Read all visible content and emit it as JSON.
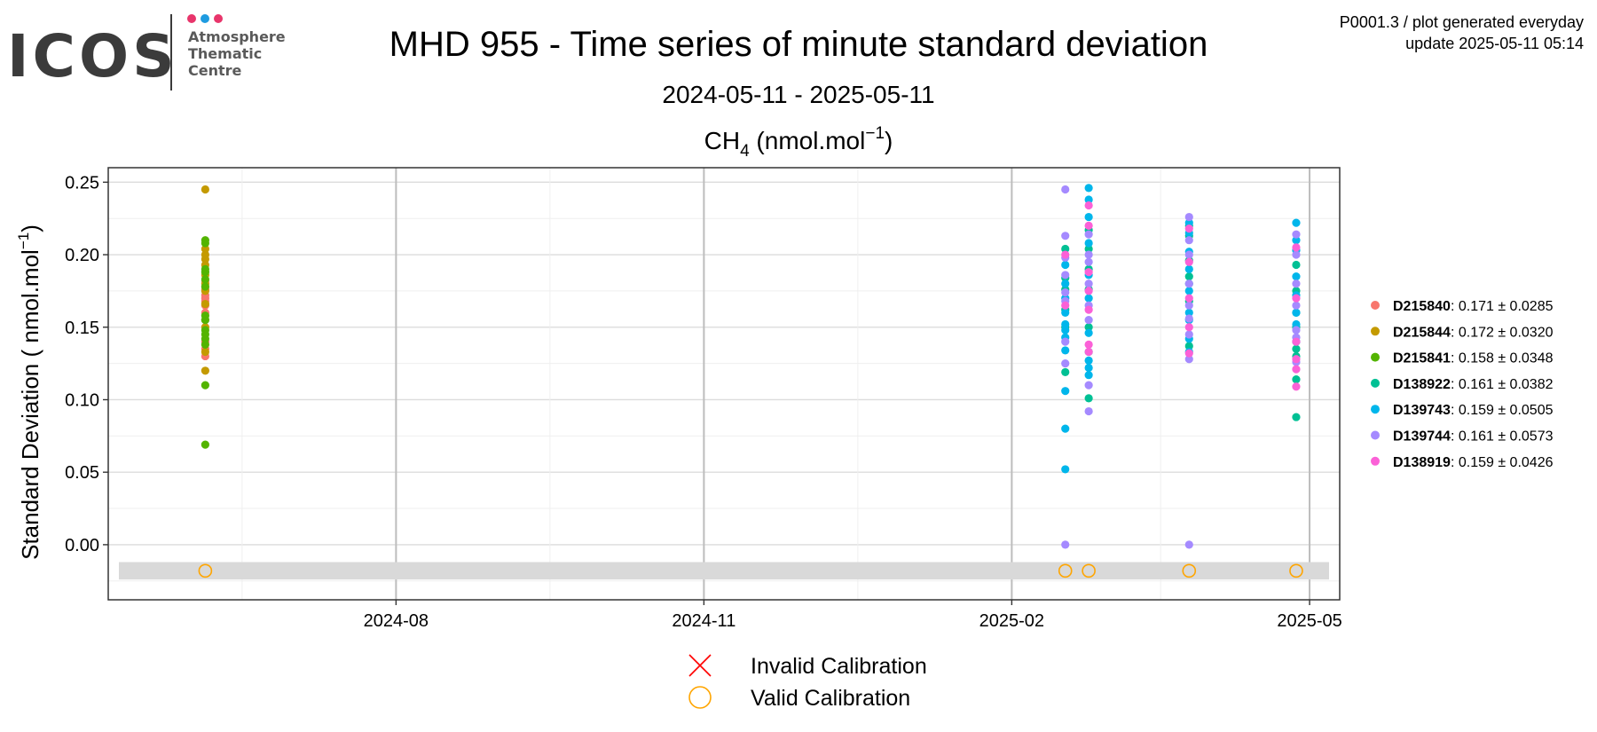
{
  "logo": {
    "word": "ICOS",
    "line1": "Atmosphere",
    "line2": "Thematic",
    "line3": "Centre",
    "dot_colors": [
      "#e8356b",
      "#1e9be0",
      "#e8356b"
    ]
  },
  "header": {
    "title": "MHD 955 - Time series of minute standard deviation",
    "date_range": "2024-05-11 - 2025-05-11",
    "gas_base": "CH",
    "gas_sub": "4",
    "unit_open": " (nmol.mol",
    "unit_sup": "−1",
    "unit_close": ")",
    "meta_line1": "P0001.3 / plot generated everyday",
    "meta_line2": "update  2025-05-11 05:14"
  },
  "chart_data": {
    "type": "scatter",
    "ylabel_main": "Standard Deviation ( nmol.mol",
    "ylabel_sup": "−1",
    "ylabel_close": ")",
    "xlim": [
      "2024-05-07",
      "2025-05-10"
    ],
    "ylim": [
      -0.038,
      0.26
    ],
    "x_ticks": [
      {
        "date": "2024-08-01",
        "label": "2024-08"
      },
      {
        "date": "2024-11-01",
        "label": "2024-11"
      },
      {
        "date": "2025-02-01",
        "label": "2025-02"
      },
      {
        "date": "2025-05-01",
        "label": "2025-05"
      }
    ],
    "y_ticks": [
      0.0,
      0.05,
      0.1,
      0.15,
      0.2,
      0.25
    ],
    "y_tick_labels": [
      "0.00",
      "0.05",
      "0.10",
      "0.15",
      "0.20",
      "0.25"
    ],
    "grid": true,
    "calibration_band": {
      "y_low": -0.024,
      "y_high": -0.012,
      "color": "#d9d9d9"
    },
    "legend_position": "right",
    "series": [
      {
        "name": "D215840",
        "stats": ": 0.171 ± 0.0285",
        "color": "#f8766d",
        "points": [
          [
            "2024-06-05",
            0.172
          ],
          [
            "2024-06-05",
            0.176
          ],
          [
            "2024-06-05",
            0.168
          ],
          [
            "2024-06-05",
            0.165
          ],
          [
            "2024-06-05",
            0.178
          ],
          [
            "2024-06-05",
            0.16
          ],
          [
            "2024-06-05",
            0.155
          ],
          [
            "2024-06-05",
            0.14
          ],
          [
            "2024-06-05",
            0.135
          ],
          [
            "2024-06-05",
            0.13
          ],
          [
            "2024-06-05",
            0.182
          ],
          [
            "2024-06-05",
            0.17
          ]
        ]
      },
      {
        "name": "D215844",
        "stats": ": 0.172 ± 0.0320",
        "color": "#c49a00",
        "points": [
          [
            "2024-06-05",
            0.245
          ],
          [
            "2024-06-05",
            0.204
          ],
          [
            "2024-06-05",
            0.2
          ],
          [
            "2024-06-05",
            0.197
          ],
          [
            "2024-06-05",
            0.193
          ],
          [
            "2024-06-05",
            0.186
          ],
          [
            "2024-06-05",
            0.18
          ],
          [
            "2024-06-05",
            0.175
          ],
          [
            "2024-06-05",
            0.166
          ],
          [
            "2024-06-05",
            0.15
          ],
          [
            "2024-06-05",
            0.133
          ],
          [
            "2024-06-05",
            0.12
          ]
        ]
      },
      {
        "name": "D215841",
        "stats": ": 0.158 ± 0.0348",
        "color": "#53b400",
        "points": [
          [
            "2024-06-05",
            0.21
          ],
          [
            "2024-06-05",
            0.208
          ],
          [
            "2024-06-05",
            0.19
          ],
          [
            "2024-06-05",
            0.188
          ],
          [
            "2024-06-05",
            0.183
          ],
          [
            "2024-06-05",
            0.178
          ],
          [
            "2024-06-05",
            0.158
          ],
          [
            "2024-06-05",
            0.155
          ],
          [
            "2024-06-05",
            0.148
          ],
          [
            "2024-06-05",
            0.145
          ],
          [
            "2024-06-05",
            0.142
          ],
          [
            "2024-06-05",
            0.138
          ],
          [
            "2024-06-05",
            0.11
          ],
          [
            "2024-06-05",
            0.069
          ]
        ]
      },
      {
        "name": "D138922",
        "stats": ": 0.161 ± 0.0382",
        "color": "#00c094",
        "points": [
          [
            "2025-02-17",
            0.204
          ],
          [
            "2025-02-17",
            0.184
          ],
          [
            "2025-02-17",
            0.176
          ],
          [
            "2025-02-17",
            0.162
          ],
          [
            "2025-02-17",
            0.15
          ],
          [
            "2025-02-17",
            0.119
          ],
          [
            "2025-02-24",
            0.217
          ],
          [
            "2025-02-24",
            0.204
          ],
          [
            "2025-02-24",
            0.19
          ],
          [
            "2025-02-24",
            0.176
          ],
          [
            "2025-02-24",
            0.15
          ],
          [
            "2025-02-24",
            0.133
          ],
          [
            "2025-02-24",
            0.101
          ],
          [
            "2025-03-26",
            0.22
          ],
          [
            "2025-03-26",
            0.213
          ],
          [
            "2025-03-26",
            0.196
          ],
          [
            "2025-03-26",
            0.185
          ],
          [
            "2025-03-26",
            0.18
          ],
          [
            "2025-03-26",
            0.168
          ],
          [
            "2025-03-26",
            0.137
          ],
          [
            "2025-04-27",
            0.193
          ],
          [
            "2025-04-27",
            0.175
          ],
          [
            "2025-04-27",
            0.16
          ],
          [
            "2025-04-27",
            0.15
          ],
          [
            "2025-04-27",
            0.135
          ],
          [
            "2025-04-27",
            0.13
          ],
          [
            "2025-04-27",
            0.114
          ],
          [
            "2025-04-27",
            0.088
          ]
        ]
      },
      {
        "name": "D139743",
        "stats": ": 0.159 ± 0.0505",
        "color": "#00b6eb",
        "points": [
          [
            "2025-02-17",
            0.193
          ],
          [
            "2025-02-17",
            0.18
          ],
          [
            "2025-02-17",
            0.17
          ],
          [
            "2025-02-17",
            0.16
          ],
          [
            "2025-02-17",
            0.152
          ],
          [
            "2025-02-17",
            0.148
          ],
          [
            "2025-02-17",
            0.143
          ],
          [
            "2025-02-17",
            0.134
          ],
          [
            "2025-02-17",
            0.106
          ],
          [
            "2025-02-17",
            0.08
          ],
          [
            "2025-02-17",
            0.052
          ],
          [
            "2025-02-24",
            0.246
          ],
          [
            "2025-02-24",
            0.238
          ],
          [
            "2025-02-24",
            0.226
          ],
          [
            "2025-02-24",
            0.208
          ],
          [
            "2025-02-24",
            0.186
          ],
          [
            "2025-02-24",
            0.17
          ],
          [
            "2025-02-24",
            0.146
          ],
          [
            "2025-02-24",
            0.127
          ],
          [
            "2025-02-24",
            0.122
          ],
          [
            "2025-02-24",
            0.117
          ],
          [
            "2025-03-26",
            0.222
          ],
          [
            "2025-03-26",
            0.215
          ],
          [
            "2025-03-26",
            0.202
          ],
          [
            "2025-03-26",
            0.19
          ],
          [
            "2025-03-26",
            0.175
          ],
          [
            "2025-03-26",
            0.16
          ],
          [
            "2025-03-26",
            0.155
          ],
          [
            "2025-03-26",
            0.142
          ],
          [
            "2025-03-26",
            0.133
          ],
          [
            "2025-04-27",
            0.222
          ],
          [
            "2025-04-27",
            0.21
          ],
          [
            "2025-04-27",
            0.203
          ],
          [
            "2025-04-27",
            0.185
          ],
          [
            "2025-04-27",
            0.172
          ],
          [
            "2025-04-27",
            0.16
          ],
          [
            "2025-04-27",
            0.152
          ],
          [
            "2025-04-27",
            0.14
          ]
        ]
      },
      {
        "name": "D139744",
        "stats": ": 0.161 ± 0.0573",
        "color": "#a58aff",
        "points": [
          [
            "2025-02-17",
            0.245
          ],
          [
            "2025-02-17",
            0.213
          ],
          [
            "2025-02-17",
            0.198
          ],
          [
            "2025-02-17",
            0.186
          ],
          [
            "2025-02-17",
            0.174
          ],
          [
            "2025-02-17",
            0.168
          ],
          [
            "2025-02-17",
            0.14
          ],
          [
            "2025-02-17",
            0.125
          ],
          [
            "2025-02-17",
            0.0
          ],
          [
            "2025-02-24",
            0.214
          ],
          [
            "2025-02-24",
            0.2
          ],
          [
            "2025-02-24",
            0.195
          ],
          [
            "2025-02-24",
            0.18
          ],
          [
            "2025-02-24",
            0.165
          ],
          [
            "2025-02-24",
            0.155
          ],
          [
            "2025-02-24",
            0.11
          ],
          [
            "2025-02-24",
            0.092
          ],
          [
            "2025-03-26",
            0.226
          ],
          [
            "2025-03-26",
            0.21
          ],
          [
            "2025-03-26",
            0.2
          ],
          [
            "2025-03-26",
            0.18
          ],
          [
            "2025-03-26",
            0.165
          ],
          [
            "2025-03-26",
            0.156
          ],
          [
            "2025-03-26",
            0.145
          ],
          [
            "2025-03-26",
            0.128
          ],
          [
            "2025-03-26",
            0.0
          ],
          [
            "2025-04-27",
            0.214
          ],
          [
            "2025-04-27",
            0.2
          ],
          [
            "2025-04-27",
            0.18
          ],
          [
            "2025-04-27",
            0.165
          ],
          [
            "2025-04-27",
            0.148
          ],
          [
            "2025-04-27",
            0.143
          ],
          [
            "2025-04-27",
            0.126
          ]
        ]
      },
      {
        "name": "D138919",
        "stats": ": 0.159 ± 0.0426",
        "color": "#fb61d7",
        "points": [
          [
            "2025-02-17",
            0.2
          ],
          [
            "2025-02-17",
            0.165
          ],
          [
            "2025-02-24",
            0.234
          ],
          [
            "2025-02-24",
            0.22
          ],
          [
            "2025-02-24",
            0.188
          ],
          [
            "2025-02-24",
            0.175
          ],
          [
            "2025-02-24",
            0.162
          ],
          [
            "2025-02-24",
            0.138
          ],
          [
            "2025-02-24",
            0.133
          ],
          [
            "2025-03-26",
            0.218
          ],
          [
            "2025-03-26",
            0.195
          ],
          [
            "2025-03-26",
            0.17
          ],
          [
            "2025-03-26",
            0.15
          ],
          [
            "2025-03-26",
            0.132
          ],
          [
            "2025-04-27",
            0.205
          ],
          [
            "2025-04-27",
            0.17
          ],
          [
            "2025-04-27",
            0.14
          ],
          [
            "2025-04-27",
            0.128
          ],
          [
            "2025-04-27",
            0.121
          ],
          [
            "2025-04-27",
            0.109
          ]
        ]
      }
    ],
    "valid_calibrations": [
      [
        "2024-06-05",
        -0.018
      ],
      [
        "2025-02-17",
        -0.018
      ],
      [
        "2025-02-24",
        -0.018
      ],
      [
        "2025-03-26",
        -0.018
      ],
      [
        "2025-04-27",
        -0.018
      ]
    ],
    "invalid_calibrations": [],
    "calibration_legend": [
      {
        "label": "Invalid Calibration",
        "symbol": "cross",
        "color": "#ff0000"
      },
      {
        "label": "Valid Calibration",
        "symbol": "circle",
        "color": "#ffa500"
      }
    ]
  }
}
